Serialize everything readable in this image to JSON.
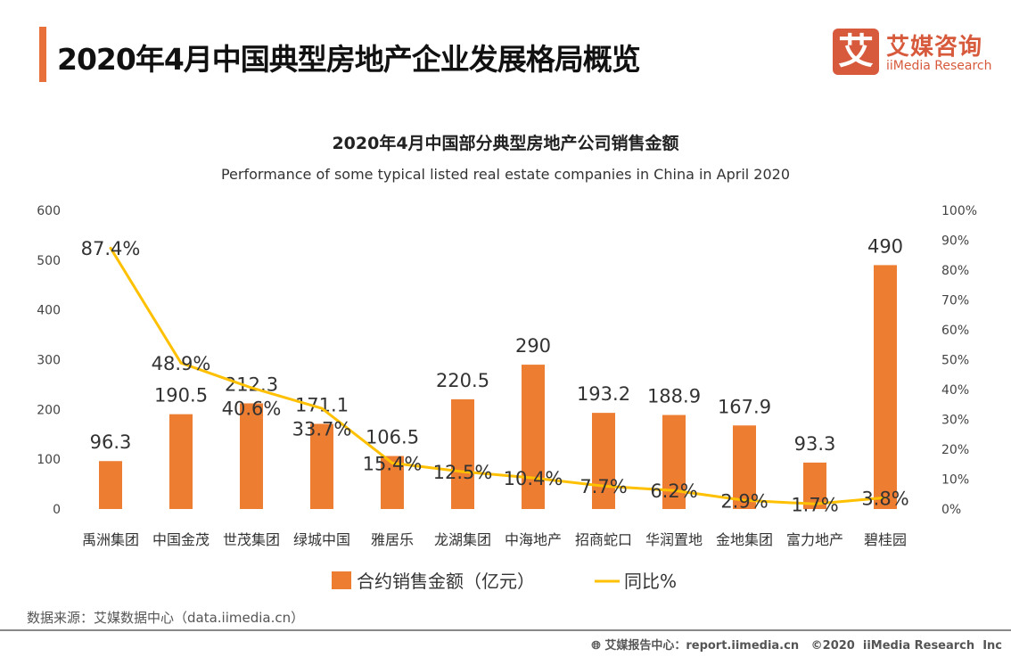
{
  "header": {
    "title": "2020年4月中国典型房地产企业发展格局概览",
    "logo_cn": "艾媒咨询",
    "logo_en": "iiMedia Research",
    "logo_mark": "艾"
  },
  "chart_data": {
    "type": "bar+line",
    "title": "2020年4月中国部分典型房地产公司销售金额",
    "subtitle": "Performance of some typical listed real estate companies in China in April 2020",
    "categories": [
      "禹洲集团",
      "中国金茂",
      "世茂集团",
      "绿城中国",
      "雅居乐",
      "龙湖集团",
      "中海地产",
      "招商蛇口",
      "华润置地",
      "金地集团",
      "富力地产",
      "碧桂园"
    ],
    "series": [
      {
        "name": "合约销售金额（亿元）",
        "type": "bar",
        "axis": "left",
        "color": "#ed7d31",
        "values": [
          96.3,
          190.5,
          212.3,
          171.1,
          106.5,
          220.5,
          290,
          193.2,
          188.9,
          167.9,
          93.3,
          490
        ],
        "labels": [
          "96.3",
          "190.5",
          "212.3",
          "171.1",
          "106.5",
          "220.5",
          "290",
          "193.2",
          "188.9",
          "167.9",
          "93.3",
          "490"
        ]
      },
      {
        "name": "同比%",
        "type": "line",
        "axis": "right",
        "color": "#ffc000",
        "values": [
          87.4,
          48.9,
          40.6,
          33.7,
          15.4,
          12.5,
          10.4,
          7.7,
          6.2,
          2.9,
          1.7,
          3.8
        ],
        "labels": [
          "87.4%",
          "48.9%",
          "40.6%",
          "33.7%",
          "15.4%",
          "12.5%",
          "10.4%",
          "7.7%",
          "6.2%",
          "2.9%",
          "1.7%",
          "3.8%"
        ]
      }
    ],
    "y_left": {
      "range": [
        0,
        600
      ],
      "ticks": [
        "0",
        "100",
        "200",
        "300",
        "400",
        "500",
        "600"
      ]
    },
    "y_right": {
      "range": [
        0,
        100
      ],
      "ticks": [
        "0%",
        "10%",
        "20%",
        "30%",
        "40%",
        "50%",
        "60%",
        "70%",
        "80%",
        "90%",
        "100%"
      ]
    },
    "grid": false,
    "legend": "bottom"
  },
  "source": "数据来源：艾媒数据中心（data.iimedia.cn）",
  "footer": "艾媒报告中心：report.iimedia.cn   ©2020  iiMedia Research  Inc"
}
